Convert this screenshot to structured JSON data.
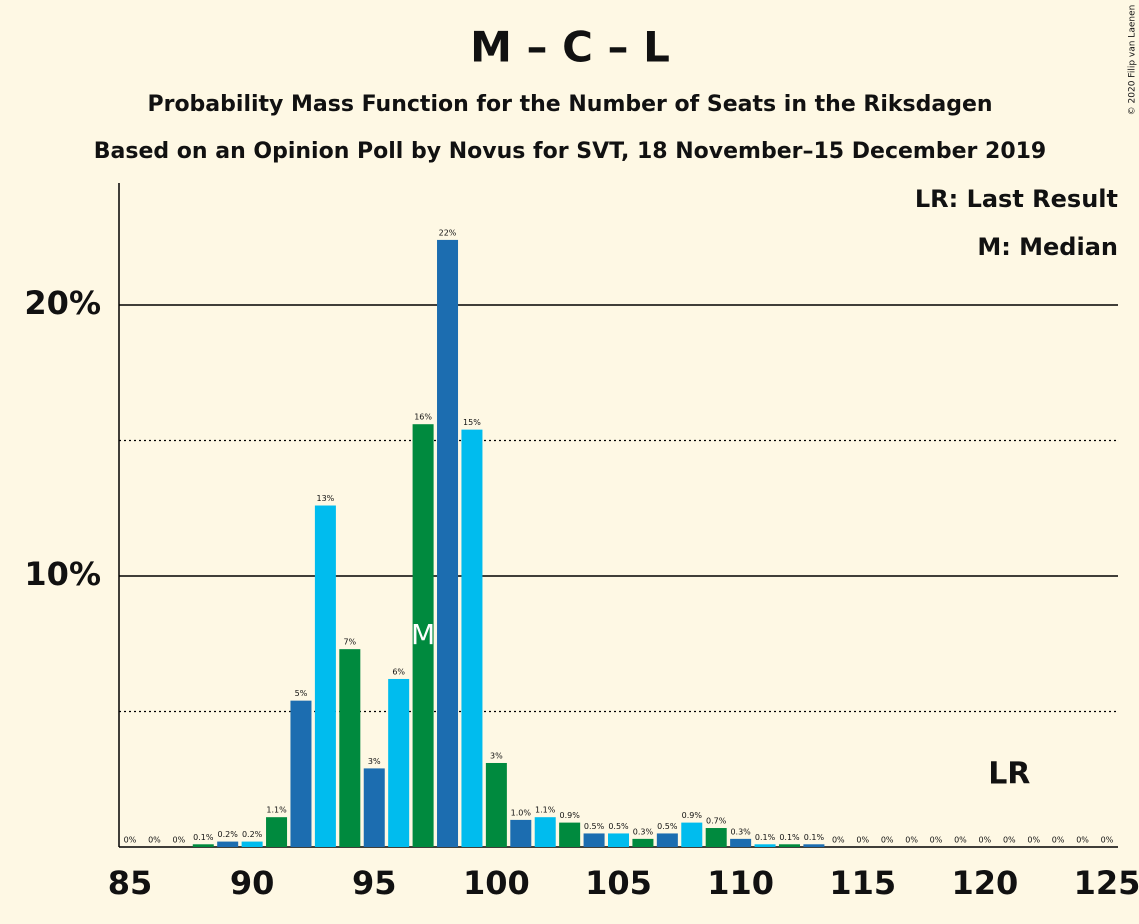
{
  "chart_data": {
    "type": "bar",
    "title": "M – C – L",
    "subtitle": "Probability Mass Function for the Number of Seats in the Riksdagen",
    "subtitle2": "Based on an Opinion Poll by Novus for SVT, 18 November–15 December 2019",
    "copyright": "© 2020 Filip van Laenen",
    "legend": [
      "LR: Last Result",
      "M: Median"
    ],
    "categories": [
      85,
      86,
      87,
      88,
      89,
      90,
      91,
      92,
      93,
      94,
      95,
      96,
      97,
      98,
      99,
      100,
      101,
      102,
      103,
      104,
      105,
      106,
      107,
      108,
      109,
      110,
      111,
      112,
      113,
      114,
      115,
      116,
      117,
      118,
      119,
      120,
      121,
      122,
      123,
      124,
      125
    ],
    "values": [
      0,
      0,
      0,
      0.1,
      0.2,
      0.2,
      1.1,
      5.4,
      12.6,
      7.3,
      2.9,
      6.2,
      15.6,
      22.4,
      15.4,
      3.1,
      1.0,
      1.1,
      0.9,
      0.5,
      0.5,
      0.3,
      0.5,
      0.9,
      0.7,
      0.3,
      0.1,
      0.1,
      0.1,
      0,
      0,
      0,
      0,
      0,
      0,
      0,
      0,
      0,
      0,
      0,
      0
    ],
    "value_labels": [
      "0%",
      "0%",
      "0%",
      "0.1%",
      "0.2%",
      "0.2%",
      "1.1%",
      "5%",
      "13%",
      "7%",
      "3%",
      "6%",
      "16%",
      "22%",
      "15%",
      "3%",
      "1.0%",
      "1.1%",
      "0.9%",
      "0.5%",
      "0.5%",
      "0.3%",
      "0.5%",
      "0.9%",
      "0.7%",
      "0.3%",
      "0.1%",
      "0.1%",
      "0.1%",
      "0%",
      "0%",
      "0%",
      "0%",
      "0%",
      "0%",
      "0%",
      "0%",
      "0%",
      "0%",
      "0%",
      "0%"
    ],
    "colors": [
      "#008a3e",
      "#1c6db0",
      "#00bcee"
    ],
    "median": {
      "label": "M",
      "x": 97
    },
    "last_result": {
      "label": "LR",
      "x": 121
    },
    "xlim": [
      84.55,
      125.45
    ],
    "xticks": [
      85,
      90,
      95,
      100,
      105,
      110,
      115,
      120,
      125
    ],
    "ylim": [
      0,
      24.5
    ],
    "yticks": [
      {
        "value": 10,
        "label": "10%"
      },
      {
        "value": 20,
        "label": "20%"
      }
    ],
    "minor_grid": [
      5,
      15
    ]
  }
}
